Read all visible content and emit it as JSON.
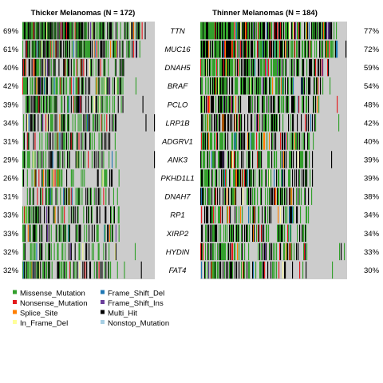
{
  "chart_data": {
    "type": "heatmap",
    "genes": [
      "TTN",
      "MUC16",
      "DNAH5",
      "BRAF",
      "PCLO",
      "LRP1B",
      "ADGRV1",
      "ANK3",
      "PKHD1L1",
      "DNAH7",
      "RP1",
      "XIRP2",
      "HYDIN",
      "FAT4"
    ],
    "panels": [
      {
        "title": "Thicker Melanomas (N = 172)",
        "n": 172,
        "percent_labels": [
          "69%",
          "61%",
          "40%",
          "42%",
          "39%",
          "34%",
          "31%",
          "29%",
          "26%",
          "31%",
          "33%",
          "33%",
          "32%",
          "32%"
        ],
        "frequencies": [
          0.69,
          0.61,
          0.4,
          0.42,
          0.39,
          0.34,
          0.31,
          0.29,
          0.26,
          0.31,
          0.33,
          0.33,
          0.32,
          0.32
        ]
      },
      {
        "title": "Thinner Melanomas (N = 184)",
        "n": 184,
        "percent_labels": [
          "77%",
          "72%",
          "59%",
          "54%",
          "48%",
          "42%",
          "40%",
          "39%",
          "39%",
          "38%",
          "34%",
          "34%",
          "33%",
          "30%"
        ],
        "frequencies": [
          0.77,
          0.72,
          0.59,
          0.54,
          0.48,
          0.42,
          0.4,
          0.39,
          0.39,
          0.38,
          0.34,
          0.34,
          0.33,
          0.3
        ]
      }
    ],
    "legend": [
      {
        "label": "Missense_Mutation",
        "color": "#33a02c"
      },
      {
        "label": "Nonsense_Mutation",
        "color": "#e31a1c"
      },
      {
        "label": "Splice_Site",
        "color": "#ff7f00"
      },
      {
        "label": "In_Frame_Del",
        "color": "#ffff99"
      },
      {
        "label": "Frame_Shift_Del",
        "color": "#1f78b4"
      },
      {
        "label": "Frame_Shift_Ins",
        "color": "#6a3d9a"
      },
      {
        "label": "Multi_Hit",
        "color": "#000000"
      },
      {
        "label": "Nonstop_Mutation",
        "color": "#a6cee3"
      }
    ],
    "colors": {
      "missense": "#33a02c",
      "nonsense": "#e31a1c",
      "splice": "#ff7f00",
      "inframe_del": "#ffff99",
      "fs_del": "#1f78b4",
      "fs_ins": "#6a3d9a",
      "multi_hit": "#000000",
      "nonstop": "#a6cee3",
      "background": "#cccccc"
    }
  }
}
